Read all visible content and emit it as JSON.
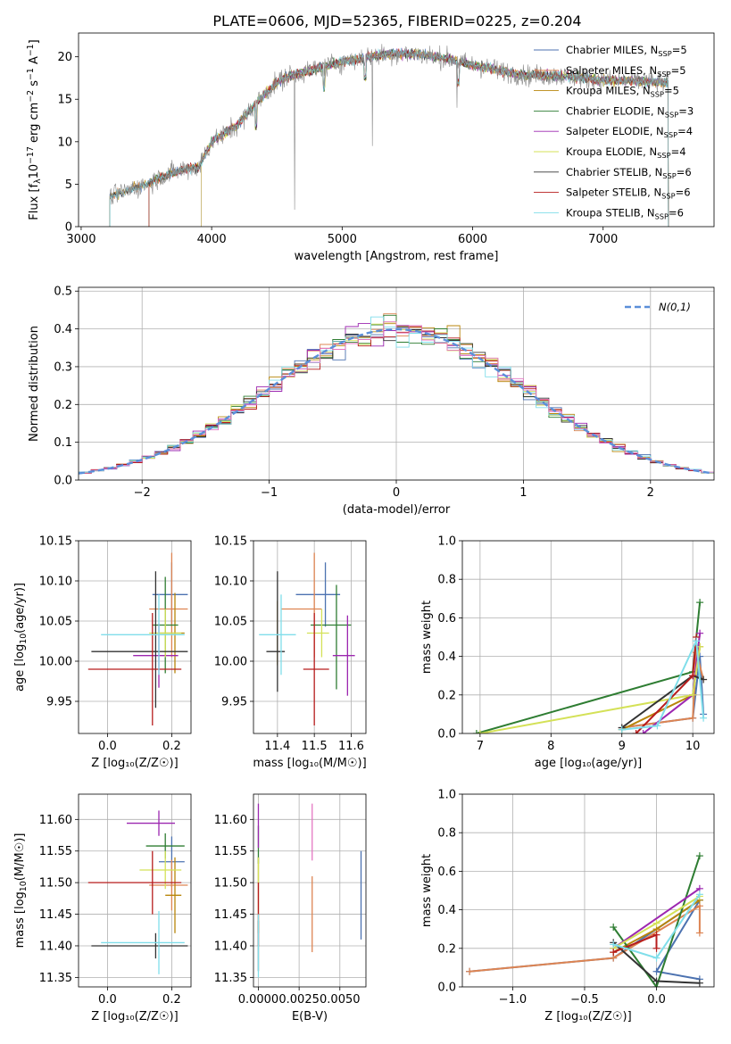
{
  "figure": {
    "title": "PLATE=0606, MJD=52365, FIBERID=0225, z=0.204",
    "colors": {
      "chabrier_miles": "#4c72b0",
      "salpeter_miles": "#dd8452",
      "kroupa_miles": "#b8860b",
      "chabrier_elodie": "#2e7d32",
      "salpeter_elodie": "#9c27b0",
      "kroupa_elodie": "#d4e157",
      "chabrier_stelib": "#333333",
      "salpeter_stelib": "#b71c1c",
      "kroupa_stelib": "#80deea"
    }
  },
  "chart_data": [
    {
      "id": "spectrum",
      "type": "line",
      "xlabel": "wavelength [Angstrom, rest frame]",
      "ylabel": "Flux [f_λ10^-17 erg cm^-2 s^-1 A^-1]",
      "xlim": [
        2980,
        7850
      ],
      "ylim": [
        0,
        22.8
      ],
      "xticks": [
        3000,
        4000,
        5000,
        6000,
        7000
      ],
      "yticks": [
        0,
        5,
        10,
        15,
        20
      ],
      "grid": false,
      "legend_position": "top-right",
      "legend": [
        {
          "label": "Chabrier MILES, N_SSP=5",
          "color_key": "chabrier_miles"
        },
        {
          "label": "Salpeter MILES, N_SSP=5",
          "color_key": "salpeter_miles"
        },
        {
          "label": "Kroupa MILES, N_SSP=5",
          "color_key": "kroupa_miles"
        },
        {
          "label": "Chabrier ELODIE, N_SSP=3",
          "color_key": "chabrier_elodie"
        },
        {
          "label": "Salpeter ELODIE, N_SSP=4",
          "color_key": "salpeter_elodie"
        },
        {
          "label": "Kroupa ELODIE, N_SSP=4",
          "color_key": "kroupa_elodie"
        },
        {
          "label": "Chabrier STELIB, N_SSP=6",
          "color_key": "chabrier_stelib"
        },
        {
          "label": "Salpeter STELIB, N_SSP=6",
          "color_key": "salpeter_stelib"
        },
        {
          "label": "Kroupa STELIB, N_SSP=6",
          "color_key": "kroupa_stelib"
        }
      ],
      "continuum": {
        "x": [
          3220,
          3300,
          3400,
          3500,
          3600,
          3700,
          3800,
          3900,
          4000,
          4100,
          4200,
          4300,
          4400,
          4500,
          4600,
          4800,
          5000,
          5200,
          5400,
          5600,
          5800,
          6000,
          6200,
          6400,
          6600,
          6800,
          7000,
          7200,
          7400,
          7500
        ],
        "y": [
          3.5,
          4.0,
          4.5,
          5.0,
          5.8,
          6.3,
          6.8,
          7.0,
          10.0,
          11.0,
          12.0,
          13.8,
          15.5,
          17.0,
          17.8,
          18.6,
          19.4,
          20.0,
          20.4,
          20.3,
          19.8,
          19.0,
          18.4,
          17.8,
          17.8,
          17.6,
          17.2,
          17.2,
          17.0,
          17.0
        ]
      },
      "model_starts": {
        "x": [
          3220,
          3220,
          3220,
          3520,
          3920,
          3920,
          3220,
          3520,
          3220
        ]
      }
    },
    {
      "id": "residual_hist",
      "type": "bar",
      "xlabel": "(data-model)/error",
      "ylabel": "Normed distribution",
      "xlim": [
        -2.5,
        2.5
      ],
      "ylim": [
        0,
        0.51
      ],
      "xticks": [
        -2,
        -1,
        0,
        1,
        2
      ],
      "yticks": [
        0.0,
        0.1,
        0.2,
        0.3,
        0.4,
        0.5
      ],
      "grid": true,
      "legend_position": "top-right",
      "reference": {
        "label": "N(0,1)",
        "mu": 0,
        "sigma": 1,
        "color": "#5b8fd9"
      },
      "bin_width": 0.1
    },
    {
      "id": "age_vs_Z",
      "type": "scatter",
      "xlabel": "Z [log10(Z/Z⊙)]",
      "ylabel": "age [log10(age/yr)]",
      "xlim": [
        -0.09,
        0.26
      ],
      "ylim": [
        9.91,
        10.15
      ],
      "xticks": [
        0.0,
        0.2
      ],
      "yticks": [
        9.95,
        10.0,
        10.05,
        10.1,
        10.15
      ],
      "grid": true,
      "points": [
        {
          "c": "chabrier_miles",
          "x": 0.2,
          "xerr": [
            0.06,
            0.05
          ],
          "y": 10.083,
          "yerr": [
            0.04,
            0.04
          ]
        },
        {
          "c": "salpeter_miles",
          "x": 0.2,
          "xerr": [
            0.07,
            0.05
          ],
          "y": 10.065,
          "yerr": [
            0.06,
            0.07
          ]
        },
        {
          "c": "kroupa_miles",
          "x": 0.21,
          "xerr": [
            0.05,
            0.03
          ],
          "y": 10.035,
          "yerr": [
            0.05,
            0.05
          ]
        },
        {
          "c": "chabrier_elodie",
          "x": 0.18,
          "xerr": [
            0.04,
            0.04
          ],
          "y": 10.045,
          "yerr": [
            0.06,
            0.06
          ]
        },
        {
          "c": "salpeter_elodie",
          "x": 0.16,
          "xerr": [
            0.08,
            0.06
          ],
          "y": 10.007,
          "yerr": [
            0.04,
            0.04
          ]
        },
        {
          "c": "kroupa_elodie",
          "x": 0.18,
          "xerr": [
            0.05,
            0.05
          ],
          "y": 10.035,
          "yerr": [
            0.03,
            0.03
          ]
        },
        {
          "c": "chabrier_stelib",
          "x": 0.15,
          "xerr": [
            0.2,
            0.1
          ],
          "y": 10.012,
          "yerr": [
            0.07,
            0.1
          ]
        },
        {
          "c": "salpeter_stelib",
          "x": 0.14,
          "xerr": [
            0.2,
            0.09
          ],
          "y": 9.99,
          "yerr": [
            0.07,
            0.07
          ]
        },
        {
          "c": "kroupa_stelib",
          "x": 0.16,
          "xerr": [
            0.18,
            0.08
          ],
          "y": 10.033,
          "yerr": [
            0.05,
            0.05
          ]
        }
      ]
    },
    {
      "id": "age_vs_mass",
      "type": "scatter",
      "xlabel": "mass [log10(M/M⊙)]",
      "ylabel": "",
      "xlim": [
        11.335,
        11.64
      ],
      "ylim": [
        9.91,
        10.15
      ],
      "xticks": [
        11.4,
        11.5,
        11.6
      ],
      "yticks": [
        9.95,
        10.0,
        10.05,
        10.1,
        10.15
      ],
      "grid": true,
      "points": [
        {
          "c": "chabrier_miles",
          "x": 11.53,
          "xerr": [
            0.08,
            0.04
          ],
          "y": 10.083,
          "yerr": [
            0.04,
            0.04
          ]
        },
        {
          "c": "salpeter_miles",
          "x": 11.5,
          "xerr": [
            0.09,
            0.02
          ],
          "y": 10.065,
          "yerr": [
            0.06,
            0.07
          ]
        },
        {
          "c": "kroupa_miles",
          "x": 11.4,
          "xerr": [
            0.0,
            0.0
          ],
          "y": 10.035,
          "yerr": [
            0.04,
            0.04
          ]
        },
        {
          "c": "chabrier_elodie",
          "x": 11.56,
          "xerr": [
            0.07,
            0.04
          ],
          "y": 10.045,
          "yerr": [
            0.08,
            0.05
          ]
        },
        {
          "c": "salpeter_elodie",
          "x": 11.59,
          "xerr": [
            0.04,
            0.02
          ],
          "y": 10.007,
          "yerr": [
            0.05,
            0.05
          ]
        },
        {
          "c": "kroupa_elodie",
          "x": 11.52,
          "xerr": [
            0.04,
            0.02
          ],
          "y": 10.035,
          "yerr": [
            0.03,
            0.03
          ]
        },
        {
          "c": "chabrier_stelib",
          "x": 11.4,
          "xerr": [
            0.03,
            0.02
          ],
          "y": 10.012,
          "yerr": [
            0.05,
            0.1
          ]
        },
        {
          "c": "salpeter_stelib",
          "x": 11.5,
          "xerr": [
            0.03,
            0.04
          ],
          "y": 9.99,
          "yerr": [
            0.07,
            0.07
          ]
        },
        {
          "c": "kroupa_stelib",
          "x": 11.41,
          "xerr": [
            0.06,
            0.04
          ],
          "y": 10.033,
          "yerr": [
            0.05,
            0.05
          ]
        }
      ]
    },
    {
      "id": "weight_vs_age",
      "type": "line",
      "xlabel": "age [log10(age/yr)]",
      "ylabel": "mass weight",
      "xlim": [
        6.75,
        10.3
      ],
      "ylim": [
        0.0,
        1.0
      ],
      "xticks": [
        7,
        8,
        9,
        10
      ],
      "yticks": [
        0.0,
        0.2,
        0.4,
        0.6,
        0.8,
        1.0
      ],
      "grid": true,
      "series": [
        {
          "c": "chabrier_miles",
          "x": [
            9.0,
            10.0,
            10.1,
            10.15
          ],
          "y": [
            0.03,
            0.08,
            0.4,
            0.1
          ]
        },
        {
          "c": "salpeter_miles",
          "x": [
            9.0,
            10.0,
            10.05,
            10.15
          ],
          "y": [
            0.03,
            0.08,
            0.42,
            0.28
          ]
        },
        {
          "c": "kroupa_miles",
          "x": [
            9.0,
            10.0,
            10.1
          ],
          "y": [
            0.02,
            0.2,
            0.45
          ]
        },
        {
          "c": "chabrier_elodie",
          "x": [
            6.95,
            10.0,
            10.1
          ],
          "y": [
            0.0,
            0.32,
            0.68
          ]
        },
        {
          "c": "salpeter_elodie",
          "x": [
            9.3,
            10.0,
            10.1
          ],
          "y": [
            0.0,
            0.2,
            0.52
          ]
        },
        {
          "c": "kroupa_elodie",
          "x": [
            7.0,
            10.0,
            10.1
          ],
          "y": [
            0.0,
            0.2,
            0.45
          ]
        },
        {
          "c": "chabrier_stelib",
          "x": [
            9.0,
            10.0,
            10.15
          ],
          "y": [
            0.03,
            0.3,
            0.28
          ]
        },
        {
          "c": "salpeter_stelib",
          "x": [
            9.2,
            10.0,
            10.05
          ],
          "y": [
            0.0,
            0.3,
            0.5
          ]
        },
        {
          "c": "kroupa_stelib",
          "x": [
            9.0,
            9.5,
            10.05,
            10.15
          ],
          "y": [
            0.02,
            0.04,
            0.48,
            0.08
          ]
        }
      ]
    },
    {
      "id": "mass_vs_Z",
      "type": "scatter",
      "xlabel": "Z [log10(Z/Z⊙)]",
      "ylabel": "mass [log10(M/M⊙)]",
      "xlim": [
        -0.09,
        0.26
      ],
      "ylim": [
        11.335,
        11.64
      ],
      "xticks": [
        0.0,
        0.2
      ],
      "yticks": [
        11.35,
        11.4,
        11.45,
        11.5,
        11.55,
        11.6
      ],
      "grid": true,
      "points": [
        {
          "c": "chabrier_miles",
          "x": 0.2,
          "xerr": [
            0.04,
            0.04
          ],
          "y": 11.533,
          "yerr": [
            0.04,
            0.04
          ]
        },
        {
          "c": "salpeter_miles",
          "x": 0.2,
          "xerr": [
            0.07,
            0.05
          ],
          "y": 11.496,
          "yerr": [
            0.04,
            0.04
          ]
        },
        {
          "c": "kroupa_miles",
          "x": 0.21,
          "xerr": [
            0.03,
            0.02
          ],
          "y": 11.48,
          "yerr": [
            0.06,
            0.06
          ]
        },
        {
          "c": "chabrier_elodie",
          "x": 0.18,
          "xerr": [
            0.06,
            0.06
          ],
          "y": 11.558,
          "yerr": [
            0.02,
            0.02
          ]
        },
        {
          "c": "salpeter_elodie",
          "x": 0.16,
          "xerr": [
            0.1,
            0.05
          ],
          "y": 11.594,
          "yerr": [
            0.02,
            0.02
          ]
        },
        {
          "c": "kroupa_elodie",
          "x": 0.18,
          "xerr": [
            0.08,
            0.05
          ],
          "y": 11.52,
          "yerr": [
            0.03,
            0.03
          ]
        },
        {
          "c": "chabrier_stelib",
          "x": 0.15,
          "xerr": [
            0.2,
            0.1
          ],
          "y": 11.4,
          "yerr": [
            0.02,
            0.02
          ]
        },
        {
          "c": "salpeter_stelib",
          "x": 0.14,
          "xerr": [
            0.2,
            0.09
          ],
          "y": 11.5,
          "yerr": [
            0.05,
            0.05
          ]
        },
        {
          "c": "kroupa_stelib",
          "x": 0.16,
          "xerr": [
            0.18,
            0.08
          ],
          "y": 11.405,
          "yerr": [
            0.05,
            0.05
          ]
        }
      ]
    },
    {
      "id": "mass_vs_ebv",
      "type": "scatter",
      "xlabel": "E(B-V)",
      "ylabel": "",
      "xlim": [
        -0.0003,
        0.0066
      ],
      "ylim": [
        11.335,
        11.64
      ],
      "xticks": [
        0.0,
        0.0025,
        0.005
      ],
      "xticklabels": [
        "0.0000",
        "0.0025",
        "0.0050"
      ],
      "yticks": [
        11.35,
        11.4,
        11.45,
        11.5,
        11.55,
        11.6
      ],
      "grid": true,
      "points": [
        {
          "c": "chabrier_miles",
          "x": 0.0063,
          "xerr": [
            0,
            0
          ],
          "y": 11.48,
          "yerr": [
            0.07,
            0.07
          ]
        },
        {
          "c": "salpeter_miles",
          "x": 0.0033,
          "xerr": [
            0,
            0
          ],
          "y": 11.45,
          "yerr": [
            0.06,
            0.06
          ]
        },
        {
          "c": "kroupa_miles",
          "x": 0.0,
          "xerr": [
            0,
            0
          ],
          "y": 11.48,
          "yerr": [
            0.06,
            0.06
          ]
        },
        {
          "c": "chabrier_elodie",
          "x": 0.0,
          "xerr": [
            0,
            0
          ],
          "y": 11.56,
          "yerr": [
            0.03,
            0.03
          ]
        },
        {
          "c": "salpeter_elodie",
          "x": 0.0,
          "xerr": [
            0,
            0
          ],
          "y": 11.59,
          "yerr": [
            0.035,
            0.035
          ]
        },
        {
          "c": "kroupa_elodie",
          "x": 0.0,
          "xerr": [
            0,
            0
          ],
          "y": 11.52,
          "yerr": [
            0.02,
            0.02
          ]
        },
        {
          "c": "chabrier_stelib",
          "x": 0.0,
          "xerr": [
            0,
            0
          ],
          "y": 11.4,
          "yerr": [
            0.04,
            0.04
          ]
        },
        {
          "c": "salpeter_stelib",
          "x": 0.0,
          "xerr": [
            0,
            0
          ],
          "y": 11.45,
          "yerr": [
            0.05,
            0.05
          ]
        },
        {
          "c": "salpeter_miles_2",
          "c2": "#e377c2",
          "x": 0.0033,
          "xerr": [
            0,
            0
          ],
          "y": 11.58,
          "yerr": [
            0.045,
            0.045
          ]
        },
        {
          "c": "kroupa_stelib",
          "x": 0.0,
          "xerr": [
            0,
            0
          ],
          "y": 11.4,
          "yerr": [
            0.05,
            0.05
          ]
        }
      ]
    },
    {
      "id": "weight_vs_Z",
      "type": "line",
      "xlabel": "Z [log10(Z/Z⊙)]",
      "ylabel": "mass weight",
      "xlim": [
        -1.35,
        0.4
      ],
      "ylim": [
        0.0,
        1.0
      ],
      "xticks": [
        -1.0,
        -0.5,
        0.0
      ],
      "xticklabels": [
        "−1.0",
        "−0.5",
        "0.0"
      ],
      "yticks": [
        0.0,
        0.2,
        0.4,
        0.6,
        0.8,
        1.0
      ],
      "grid": true,
      "series": [
        {
          "c": "chabrier_miles",
          "x": [
            -1.3,
            -0.3,
            0.3,
            0.0,
            0.3
          ],
          "y": [
            0.08,
            0.15,
            0.45,
            0.08,
            0.04
          ]
        },
        {
          "c": "salpeter_miles",
          "x": [
            -1.3,
            -0.3,
            0.3,
            0.3
          ],
          "y": [
            0.08,
            0.15,
            0.42,
            0.28
          ]
        },
        {
          "c": "kroupa_miles",
          "x": [
            -0.3,
            0.0,
            0.3
          ],
          "y": [
            0.18,
            0.3,
            0.45
          ]
        },
        {
          "c": "chabrier_elodie",
          "x": [
            -0.3,
            0.0,
            0.3
          ],
          "y": [
            0.31,
            0.0,
            0.68
          ]
        },
        {
          "c": "salpeter_elodie",
          "x": [
            -0.3,
            0.3
          ],
          "y": [
            0.2,
            0.51
          ]
        },
        {
          "c": "kroupa_elodie",
          "x": [
            -0.3,
            0.0,
            0.3
          ],
          "y": [
            0.2,
            0.33,
            0.47
          ]
        },
        {
          "c": "chabrier_stelib",
          "x": [
            -0.3,
            0.0,
            0.3
          ],
          "y": [
            0.23,
            0.03,
            0.02
          ]
        },
        {
          "c": "salpeter_stelib",
          "x": [
            -0.3,
            0.0,
            0.0
          ],
          "y": [
            0.18,
            0.27,
            0.2
          ]
        },
        {
          "c": "kroupa_stelib",
          "x": [
            -0.3,
            0.0,
            0.3
          ],
          "y": [
            0.22,
            0.15,
            0.48
          ]
        }
      ]
    }
  ]
}
